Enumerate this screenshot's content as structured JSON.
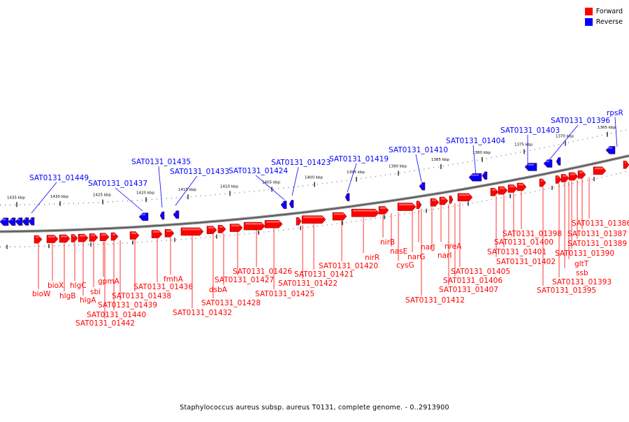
{
  "legend": {
    "forward": "Forward",
    "reverse": "Reverse",
    "forward_color": "#ff0000",
    "reverse_color": "#0000ff"
  },
  "footer": "Staphylococcus aureus subsp. aureus T0131, complete genome. - 0..2913900",
  "ticks": [
    "1435 kbp",
    "1430 kbp",
    "1425 kbp",
    "1420 kbp",
    "1415 kbp",
    "1410 kbp",
    "1405 kbp",
    "1400 kbp",
    "1395 kbp",
    "1390 kbp",
    "1385 kbp",
    "1380 kbp",
    "1375 kbp",
    "1370 kbp",
    "1365 kbp"
  ],
  "reverse_labels": [
    "SAT0131_01449",
    "SAT0131_01437",
    "SAT0131_01435",
    "SAT0131_01433",
    "SAT0131_01424",
    "SAT0131_01423",
    "SAT0131_01419",
    "SAT0131_01410",
    "SAT0131_01404",
    "SAT0131_01403",
    "SAT0131_01396",
    "rpsR"
  ],
  "forward_labels": [
    "bioW",
    "bioX",
    "hlgB",
    "hlgC",
    "hlgA",
    "sbi",
    "gpmA",
    "SAT0131_01442",
    "SAT0131_01440",
    "SAT0131_01439",
    "SAT0131_01438",
    "SAT0131_01436",
    "fmhA",
    "SAT0131_01432",
    "SAT0131_01428",
    "dsbA",
    "SAT0131_01427",
    "SAT0131_01426",
    "SAT0131_01425",
    "SAT0131_01422",
    "SAT0131_01421",
    "SAT0131_01420",
    "nirR",
    "nirB",
    "nasE",
    "cysG",
    "narG",
    "narJ",
    "narI",
    "nreA",
    "SAT0131_01412",
    "SAT0131_01407",
    "SAT0131_01406",
    "SAT0131_01405",
    "SAT0131_01402",
    "SAT0131_01401",
    "SAT0131_01400",
    "SAT0131_01398",
    "SAT0131_01395",
    "SAT0131_01393",
    "ssb",
    "gltT",
    "SAT0131_01390",
    "SAT0131_01389",
    "SAT0131_01387",
    "SAT0131_01386"
  ]
}
